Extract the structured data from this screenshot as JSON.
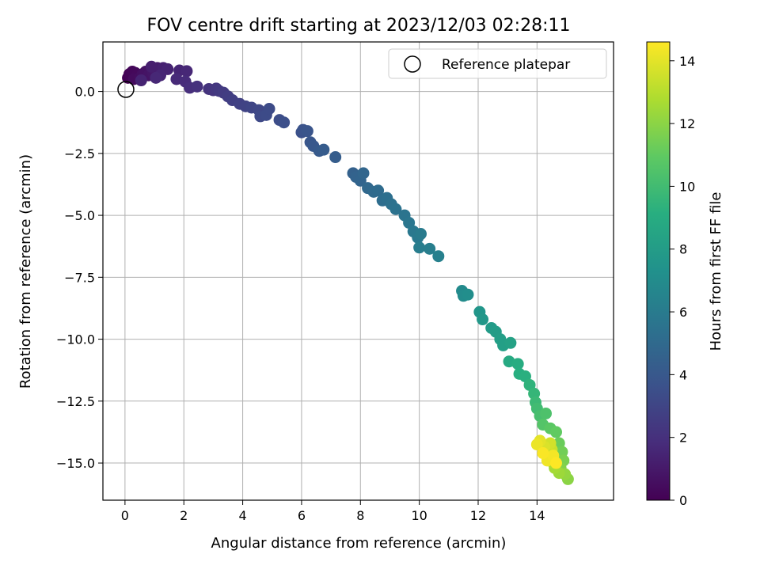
{
  "chart_data": {
    "type": "scatter",
    "title": "FOV centre drift starting at 2023/12/03 02:28:11",
    "xlabel": "Angular distance from reference (arcmin)",
    "ylabel": "Rotation from reference (arcmin)",
    "xlim": [
      -0.75,
      16.6
    ],
    "ylim": [
      -16.5,
      2.0
    ],
    "xticks": [
      0,
      2,
      4,
      6,
      8,
      10,
      12,
      14
    ],
    "xtick_labels": [
      "0",
      "2",
      "4",
      "6",
      "8",
      "10",
      "12",
      "14"
    ],
    "yticks": [
      0.0,
      -2.5,
      -5.0,
      -7.5,
      -10.0,
      -12.5,
      -15.0
    ],
    "ytick_labels": [
      "0.0",
      "−2.5",
      "−5.0",
      "−7.5",
      "−10.0",
      "−12.5",
      "−15.0"
    ],
    "grid": true,
    "legend": {
      "placement": "top-right",
      "label": "Reference platepar"
    },
    "reference_point": {
      "x": 0.0,
      "y": 0.0
    },
    "colorbar": {
      "label": "Hours from first FF file",
      "colormap": "viridis",
      "range": [
        0,
        14.6
      ],
      "ticks": [
        0,
        2,
        4,
        6,
        8,
        10,
        12,
        14
      ],
      "tick_labels": [
        "0",
        "2",
        "4",
        "6",
        "8",
        "10",
        "12",
        "14"
      ]
    },
    "series": [
      {
        "points": [
          {
            "x": 0.1,
            "y": 0.55,
            "c": 0.0
          },
          {
            "x": 0.15,
            "y": 0.7,
            "c": 0.1
          },
          {
            "x": 0.2,
            "y": 0.6,
            "c": 0.15
          },
          {
            "x": 0.25,
            "y": 0.8,
            "c": 0.2
          },
          {
            "x": 0.35,
            "y": 0.75,
            "c": 0.3
          },
          {
            "x": 0.4,
            "y": 0.65,
            "c": 0.35
          },
          {
            "x": 0.3,
            "y": 0.5,
            "c": 0.4
          },
          {
            "x": 0.5,
            "y": 0.55,
            "c": 0.5
          },
          {
            "x": 0.6,
            "y": 0.7,
            "c": 0.6
          },
          {
            "x": 0.7,
            "y": 0.8,
            "c": 0.7
          },
          {
            "x": 0.8,
            "y": 0.65,
            "c": 0.8
          },
          {
            "x": 0.95,
            "y": 0.75,
            "c": 0.9
          },
          {
            "x": 1.0,
            "y": 0.9,
            "c": 1.0
          },
          {
            "x": 1.1,
            "y": 0.95,
            "c": 1.1
          },
          {
            "x": 1.2,
            "y": 0.85,
            "c": 1.2
          },
          {
            "x": 0.9,
            "y": 1.0,
            "c": 1.2
          },
          {
            "x": 1.3,
            "y": 0.95,
            "c": 1.3
          },
          {
            "x": 1.45,
            "y": 0.9,
            "c": 1.4
          },
          {
            "x": 0.55,
            "y": 0.45,
            "c": 1.4
          },
          {
            "x": 1.2,
            "y": 0.65,
            "c": 1.5
          },
          {
            "x": 1.85,
            "y": 0.85,
            "c": 1.5
          },
          {
            "x": 2.1,
            "y": 0.82,
            "c": 1.6
          },
          {
            "x": 1.05,
            "y": 0.55,
            "c": 1.6
          },
          {
            "x": 1.75,
            "y": 0.5,
            "c": 1.7
          },
          {
            "x": 2.05,
            "y": 0.4,
            "c": 1.8
          },
          {
            "x": 2.2,
            "y": 0.15,
            "c": 1.9
          },
          {
            "x": 2.45,
            "y": 0.2,
            "c": 2.0
          },
          {
            "x": 2.85,
            "y": 0.1,
            "c": 2.1
          },
          {
            "x": 3.0,
            "y": 0.05,
            "c": 2.2
          },
          {
            "x": 3.1,
            "y": 0.12,
            "c": 2.3
          },
          {
            "x": 3.2,
            "y": 0.02,
            "c": 2.4
          },
          {
            "x": 3.35,
            "y": -0.05,
            "c": 2.5
          },
          {
            "x": 3.5,
            "y": -0.2,
            "c": 2.6
          },
          {
            "x": 3.65,
            "y": -0.35,
            "c": 2.7
          },
          {
            "x": 3.9,
            "y": -0.5,
            "c": 2.8
          },
          {
            "x": 4.1,
            "y": -0.6,
            "c": 2.9
          },
          {
            "x": 4.3,
            "y": -0.65,
            "c": 3.0
          },
          {
            "x": 4.55,
            "y": -0.75,
            "c": 3.1
          },
          {
            "x": 4.6,
            "y": -1.0,
            "c": 3.2
          },
          {
            "x": 4.8,
            "y": -0.95,
            "c": 3.3
          },
          {
            "x": 4.9,
            "y": -0.7,
            "c": 3.3
          },
          {
            "x": 5.25,
            "y": -1.15,
            "c": 3.4
          },
          {
            "x": 5.4,
            "y": -1.25,
            "c": 3.5
          },
          {
            "x": 6.0,
            "y": -1.65,
            "c": 3.6
          },
          {
            "x": 6.05,
            "y": -1.55,
            "c": 3.7
          },
          {
            "x": 6.2,
            "y": -1.6,
            "c": 3.8
          },
          {
            "x": 6.3,
            "y": -2.05,
            "c": 3.9
          },
          {
            "x": 6.4,
            "y": -2.2,
            "c": 4.0
          },
          {
            "x": 6.6,
            "y": -2.4,
            "c": 4.1
          },
          {
            "x": 6.75,
            "y": -2.35,
            "c": 4.2
          },
          {
            "x": 7.15,
            "y": -2.65,
            "c": 4.3
          },
          {
            "x": 7.75,
            "y": -3.3,
            "c": 4.5
          },
          {
            "x": 7.85,
            "y": -3.45,
            "c": 4.6
          },
          {
            "x": 8.0,
            "y": -3.6,
            "c": 4.7
          },
          {
            "x": 8.1,
            "y": -3.3,
            "c": 4.8
          },
          {
            "x": 8.25,
            "y": -3.9,
            "c": 4.9
          },
          {
            "x": 8.45,
            "y": -4.05,
            "c": 5.0
          },
          {
            "x": 8.6,
            "y": -4.0,
            "c": 5.1
          },
          {
            "x": 8.75,
            "y": -4.4,
            "c": 5.2
          },
          {
            "x": 8.9,
            "y": -4.3,
            "c": 5.3
          },
          {
            "x": 9.05,
            "y": -4.55,
            "c": 5.4
          },
          {
            "x": 9.2,
            "y": -4.75,
            "c": 5.5
          },
          {
            "x": 9.5,
            "y": -5.0,
            "c": 5.6
          },
          {
            "x": 9.65,
            "y": -5.3,
            "c": 5.7
          },
          {
            "x": 9.8,
            "y": -5.65,
            "c": 5.8
          },
          {
            "x": 9.95,
            "y": -5.9,
            "c": 5.9
          },
          {
            "x": 10.05,
            "y": -5.75,
            "c": 6.0
          },
          {
            "x": 10.0,
            "y": -6.3,
            "c": 6.1
          },
          {
            "x": 10.35,
            "y": -6.35,
            "c": 6.2
          },
          {
            "x": 10.65,
            "y": -6.65,
            "c": 6.3
          },
          {
            "x": 11.45,
            "y": -8.05,
            "c": 6.9
          },
          {
            "x": 11.5,
            "y": -8.25,
            "c": 7.0
          },
          {
            "x": 11.65,
            "y": -8.2,
            "c": 7.1
          },
          {
            "x": 12.05,
            "y": -8.9,
            "c": 7.6
          },
          {
            "x": 12.15,
            "y": -9.2,
            "c": 7.7
          },
          {
            "x": 12.45,
            "y": -9.55,
            "c": 7.9
          },
          {
            "x": 12.6,
            "y": -9.7,
            "c": 8.0
          },
          {
            "x": 12.75,
            "y": -10.0,
            "c": 8.1
          },
          {
            "x": 12.85,
            "y": -10.25,
            "c": 8.2
          },
          {
            "x": 13.1,
            "y": -10.15,
            "c": 8.3
          },
          {
            "x": 13.05,
            "y": -10.9,
            "c": 8.8
          },
          {
            "x": 13.35,
            "y": -11.0,
            "c": 9.0
          },
          {
            "x": 13.4,
            "y": -11.4,
            "c": 9.1
          },
          {
            "x": 13.6,
            "y": -11.5,
            "c": 9.2
          },
          {
            "x": 13.75,
            "y": -11.85,
            "c": 9.4
          },
          {
            "x": 13.9,
            "y": -12.2,
            "c": 9.6
          },
          {
            "x": 13.95,
            "y": -12.55,
            "c": 9.8
          },
          {
            "x": 14.0,
            "y": -12.8,
            "c": 10.0
          },
          {
            "x": 14.1,
            "y": -13.1,
            "c": 10.2
          },
          {
            "x": 14.3,
            "y": -13.0,
            "c": 10.4
          },
          {
            "x": 14.2,
            "y": -13.45,
            "c": 10.6
          },
          {
            "x": 14.45,
            "y": -13.6,
            "c": 10.8
          },
          {
            "x": 14.65,
            "y": -13.75,
            "c": 11.0
          },
          {
            "x": 14.75,
            "y": -14.2,
            "c": 11.2
          },
          {
            "x": 14.85,
            "y": -14.55,
            "c": 11.4
          },
          {
            "x": 14.9,
            "y": -14.9,
            "c": 11.6
          },
          {
            "x": 14.8,
            "y": -15.2,
            "c": 11.8
          },
          {
            "x": 15.05,
            "y": -15.65,
            "c": 12.0
          },
          {
            "x": 14.95,
            "y": -15.45,
            "c": 12.2
          },
          {
            "x": 14.75,
            "y": -15.4,
            "c": 12.4
          },
          {
            "x": 14.6,
            "y": -15.2,
            "c": 12.6
          },
          {
            "x": 14.55,
            "y": -15.0,
            "c": 12.8
          },
          {
            "x": 14.4,
            "y": -14.85,
            "c": 13.0
          },
          {
            "x": 14.3,
            "y": -14.6,
            "c": 13.2
          },
          {
            "x": 14.5,
            "y": -14.45,
            "c": 13.4
          },
          {
            "x": 14.45,
            "y": -14.2,
            "c": 13.6
          },
          {
            "x": 14.25,
            "y": -14.35,
            "c": 13.8
          },
          {
            "x": 14.1,
            "y": -14.1,
            "c": 14.0
          },
          {
            "x": 14.0,
            "y": -14.25,
            "c": 14.2
          },
          {
            "x": 14.35,
            "y": -14.9,
            "c": 14.3
          },
          {
            "x": 14.55,
            "y": -14.7,
            "c": 14.4
          },
          {
            "x": 14.2,
            "y": -14.6,
            "c": 14.5
          },
          {
            "x": 14.65,
            "y": -15.0,
            "c": 14.6
          }
        ]
      }
    ]
  }
}
